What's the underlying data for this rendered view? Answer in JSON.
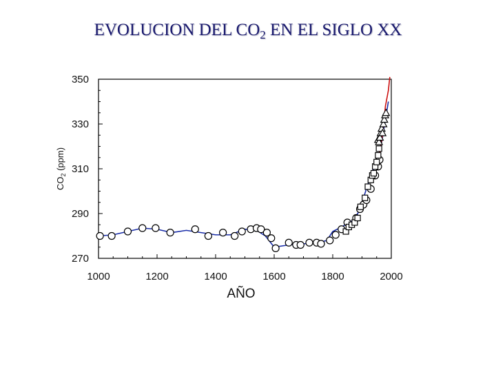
{
  "slide": {
    "title_main": "EVOLUCION DEL CO",
    "title_sub": "2",
    "title_rest": " EN EL SIGLO XX"
  },
  "chart_data": {
    "type": "scatter",
    "xlabel": "AÑO",
    "ylabel_main": "CO",
    "ylabel_sub": "2",
    "ylabel_rest": " (ppm)",
    "xlim": [
      1000,
      2000
    ],
    "ylim": [
      270,
      350
    ],
    "x_ticks": [
      1000,
      1200,
      1400,
      1600,
      1800,
      2000
    ],
    "y_ticks": [
      270,
      290,
      310,
      330,
      350
    ],
    "grid": false,
    "colors": {
      "fit_line": "#1a2ea8",
      "direct_line": "#cc1111",
      "marker": "#000000"
    },
    "fit_line": {
      "x": [
        1000,
        1050,
        1100,
        1150,
        1200,
        1250,
        1300,
        1350,
        1400,
        1450,
        1500,
        1540,
        1570,
        1600,
        1650,
        1700,
        1750,
        1780,
        1800,
        1830,
        1850,
        1870,
        1890,
        1900,
        1910,
        1920,
        1930,
        1940,
        1950,
        1960,
        1970,
        1980,
        1990
      ],
      "y": [
        280,
        280.5,
        282,
        283.5,
        283,
        281.5,
        282.5,
        281.5,
        280.5,
        280.5,
        283,
        282.5,
        280,
        275,
        276,
        276.5,
        277,
        278,
        282,
        284,
        285.5,
        287,
        291,
        295,
        299,
        303,
        307,
        310,
        313,
        317,
        324,
        332,
        340
      ]
    },
    "direct_line": {
      "x": [
        1958,
        1970,
        1980,
        1990,
        1995
      ],
      "y": [
        315,
        325,
        338,
        345,
        352
      ]
    },
    "series": [
      {
        "marker": "circle",
        "x": [
          1005,
          1045,
          1100,
          1150,
          1195,
          1245,
          1330,
          1375,
          1425,
          1465,
          1490,
          1520,
          1540,
          1555,
          1575,
          1590,
          1605,
          1650,
          1675,
          1690,
          1720,
          1745,
          1760,
          1790,
          1810,
          1830,
          1850,
          1880,
          1893,
          1905,
          1915,
          1930,
          1945,
          1955,
          1960
        ],
        "y": [
          280,
          280,
          282,
          283.5,
          283.5,
          281.5,
          283,
          280,
          281.5,
          280,
          282,
          283,
          283.5,
          283,
          281.5,
          279,
          274.5,
          277,
          276,
          276,
          277,
          277,
          276.5,
          278,
          280.5,
          283,
          286,
          288,
          292,
          294,
          296,
          301,
          307,
          311,
          314
        ]
      },
      {
        "marker": "square",
        "x": [
          1845,
          1855,
          1865,
          1875,
          1885,
          1895,
          1910,
          1920,
          1930,
          1935,
          1940,
          1945,
          1950,
          1955,
          1958
        ],
        "y": [
          282,
          284,
          285,
          286,
          288,
          293,
          297,
          302,
          305,
          307,
          308,
          311,
          313,
          316,
          319
        ]
      },
      {
        "marker": "triangle",
        "x": [
          1955,
          1958,
          1961,
          1964,
          1967,
          1970,
          1973,
          1976,
          1979,
          1982
        ],
        "y": [
          323,
          322,
          324,
          326,
          328,
          326,
          330,
          332,
          334,
          335
        ]
      }
    ]
  }
}
